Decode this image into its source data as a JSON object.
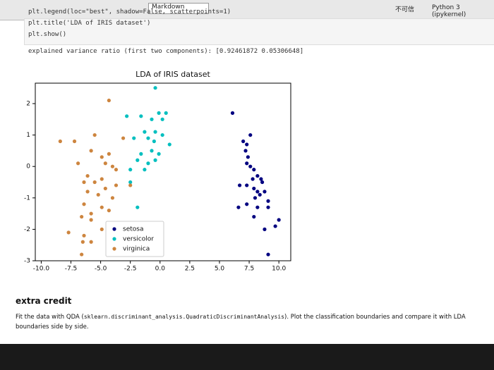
{
  "toolbar": {
    "cell_type": "Markdown",
    "trust": "不可信",
    "kernel": "Python 3 (ipykernel)"
  },
  "code": [
    "plt.legend(loc=\"best\", shadow=False, scatterpoints=1)",
    "plt.title('LDA of IRIS dataset')",
    "plt.show()"
  ],
  "output": "explained variance ratio (first two components): [0.92461872 0.05306648]",
  "chart_data": {
    "type": "scatter",
    "title": "LDA of IRIS dataset",
    "xlim": [
      -10.5,
      11
    ],
    "ylim": [
      -3,
      2.65
    ],
    "xticks": [
      {
        "value": -10,
        "label": "-10.0"
      },
      {
        "value": -7.5,
        "label": "-7.5"
      },
      {
        "value": -5,
        "label": "-5.0"
      },
      {
        "value": -2.5,
        "label": "-2.5"
      },
      {
        "value": 0,
        "label": "0.0"
      },
      {
        "value": 2.5,
        "label": "2.5"
      },
      {
        "value": 5,
        "label": "5.0"
      },
      {
        "value": 7.5,
        "label": "7.5"
      },
      {
        "value": 10,
        "label": "10.0"
      }
    ],
    "yticks": [
      -3,
      -2,
      -1,
      0,
      1,
      2
    ],
    "legend": "lower center",
    "series": [
      {
        "name": "setosa",
        "color": "#000080",
        "x": [
          6.1,
          7.0,
          7.3,
          7.2,
          7.4,
          7.3,
          7.6,
          7.9,
          8.2,
          8.5,
          6.7,
          7.3,
          7.9,
          8.2,
          8.8,
          8.4,
          9.1,
          6.6,
          7.3,
          8.2,
          9.1,
          7.9,
          8.8,
          9.7,
          10.0,
          9.1,
          7.6,
          7.8,
          8.6,
          8.0
        ],
        "values": [
          1.7,
          0.8,
          0.7,
          0.5,
          0.3,
          0.1,
          0.0,
          -0.1,
          -0.3,
          -0.4,
          -0.6,
          -0.6,
          -0.7,
          -0.8,
          -0.8,
          -0.9,
          -1.1,
          -1.3,
          -1.2,
          -1.3,
          -1.3,
          -1.6,
          -2.0,
          -1.9,
          -1.7,
          -2.8,
          1.0,
          -0.4,
          -0.5,
          -1.0
        ]
      },
      {
        "name": "versicolor",
        "color": "#00bfbf",
        "x": [
          -0.4,
          -1.6,
          -0.1,
          0.5,
          -0.7,
          0.2,
          -2.8,
          -1.3,
          -0.4,
          -2.2,
          -1.0,
          0.8,
          -1.6,
          -0.7,
          -0.1,
          -1.9,
          -1.0,
          -0.4,
          -2.5,
          -1.3,
          -2.5,
          -1.9,
          0.2,
          -0.5
        ],
        "values": [
          2.5,
          1.6,
          1.7,
          1.7,
          1.5,
          1.5,
          1.6,
          1.1,
          1.1,
          0.9,
          0.9,
          0.7,
          0.4,
          0.5,
          0.4,
          0.2,
          0.1,
          0.2,
          -0.1,
          -0.1,
          -0.5,
          -1.3,
          1.0,
          0.8
        ]
      },
      {
        "name": "virginica",
        "color": "#cd853f",
        "x": [
          -4.3,
          -3.1,
          -5.5,
          -7.2,
          -5.8,
          -8.4,
          -4.3,
          -4.9,
          -6.9,
          -4.6,
          -4.0,
          -3.7,
          -6.1,
          -4.9,
          -5.5,
          -6.4,
          -4.6,
          -3.7,
          -2.5,
          -6.1,
          -5.2,
          -4.0,
          -6.4,
          -4.9,
          -5.8,
          -4.3,
          -6.6,
          -5.8,
          -4.9,
          -6.4,
          -7.7,
          -5.8,
          -6.5,
          -6.6
        ],
        "values": [
          2.1,
          0.9,
          1.0,
          0.8,
          0.5,
          0.8,
          0.4,
          0.3,
          0.1,
          0.1,
          0.0,
          -0.1,
          -0.3,
          -0.4,
          -0.5,
          -0.5,
          -0.7,
          -0.6,
          -0.6,
          -0.8,
          -0.9,
          -1.0,
          -1.2,
          -1.3,
          -1.5,
          -1.4,
          -1.6,
          -1.7,
          -2.0,
          -2.2,
          -2.1,
          -2.4,
          -2.4,
          -2.8
        ]
      }
    ]
  },
  "markdown": {
    "title": "extra credit",
    "paragraph": [
      "Fit the data with QDA (",
      "sklearn.discriminant_analysis.QuadraticDiscriminantAnalysis",
      "). Plot the classification boundaries and compare it with LDA boundaries side by side."
    ]
  }
}
